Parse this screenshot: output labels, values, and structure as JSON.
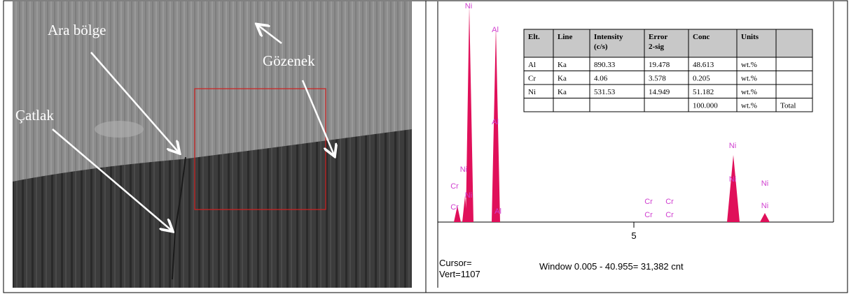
{
  "sem_image": {
    "labels": [
      "Ara bölge",
      "Gözenek",
      "Çatlak"
    ]
  },
  "spectrum": {
    "peak_labels": [
      "Ni",
      "Al",
      "Al",
      "Ni",
      "Cr",
      "Cr",
      "Ni",
      "Al",
      "Cr",
      "Cr",
      "Cr",
      "Cr",
      "Ni",
      "Ni",
      "Ni",
      "Ni"
    ],
    "x_tick": "5",
    "cursor": "Cursor=",
    "vert": "Vert=1107",
    "window": "Window 0.005 - 40.955=  31,382 cnt"
  },
  "table": {
    "header": [
      "Elt.",
      "Line",
      "Intensity (c/s)",
      "Error 2-sig",
      "Conc",
      "Units",
      ""
    ],
    "rows": [
      [
        "Al",
        "Ka",
        "890.33",
        "19.478",
        "48.613",
        "wt.%",
        ""
      ],
      [
        "Cr",
        "Ka",
        "4.06",
        "3.578",
        "0.205",
        "wt.%",
        ""
      ],
      [
        "Ni",
        "Ka",
        "531.53",
        "14.949",
        "51.182",
        "wt.%",
        ""
      ],
      [
        "",
        "",
        "",
        "",
        "100.000",
        "wt.%",
        "Total"
      ]
    ]
  }
}
